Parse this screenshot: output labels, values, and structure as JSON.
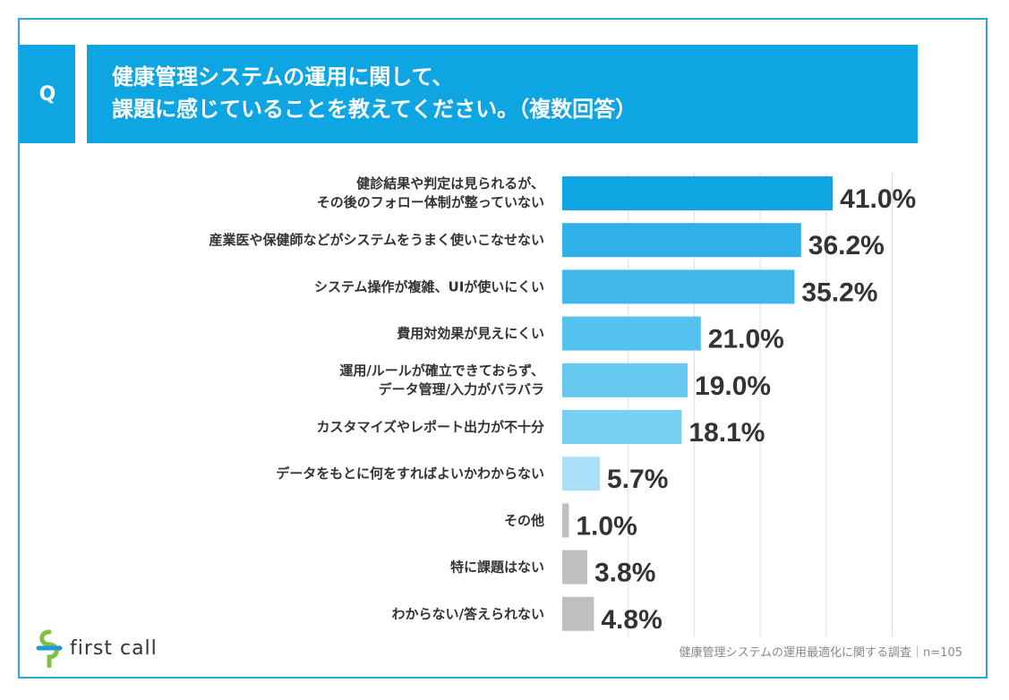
{
  "header": {
    "q_label": "Q",
    "title_line1": "健康管理システムの運用に関して、",
    "title_line2": "課題に感じていることを教えてください。（複数回答）"
  },
  "chart_data": {
    "type": "bar",
    "orientation": "horizontal",
    "title": "健康管理システムの運用に関して、課題に感じていることを教えてください。（複数回答）",
    "categories": [
      [
        "健診結果や判定は見られるが、",
        "その後のフォロー体制が整っていない"
      ],
      [
        "産業医や保健師などがシステムをうまく使いこなせない"
      ],
      [
        "システム操作が複雑、UIが使いにくい"
      ],
      [
        "費用対効果が見えにくい"
      ],
      [
        "運用/ルールが確立できておらず、",
        "データ管理/入力がバラバラ"
      ],
      [
        "カスタマイズやレポート出力が不十分"
      ],
      [
        "データをもとに何をすればよいかわからない"
      ],
      [
        "その他"
      ],
      [
        "特に課題はない"
      ],
      [
        "わからない/答えられない"
      ]
    ],
    "values": [
      41.0,
      36.2,
      35.2,
      21.0,
      19.0,
      18.1,
      5.7,
      1.0,
      3.8,
      4.8
    ],
    "value_labels": [
      "41.0%",
      "36.2%",
      "35.2%",
      "21.0%",
      "19.0%",
      "18.1%",
      "5.7%",
      "1.0%",
      "3.8%",
      "4.8%"
    ],
    "bar_colors": [
      "#0ea5e3",
      "#2fb1e8",
      "#42bae9",
      "#54c2ee",
      "#66c8ef",
      "#77cff1",
      "#a9e0f7",
      "#bfbfbf",
      "#bfbfbf",
      "#bfbfbf"
    ],
    "xlim": [
      0,
      50
    ],
    "grid": true,
    "legend": "none"
  },
  "footer": {
    "brand": "first call",
    "source": "健康管理システムの運用最適化に関する調査｜n=105"
  },
  "colors": {
    "accent": "#0ea5e3",
    "frame": "#2aa8dc",
    "label_text": "#333333",
    "value_text": "#333333",
    "logo_green": "#7dc242",
    "logo_blue": "#1b9ad6"
  }
}
